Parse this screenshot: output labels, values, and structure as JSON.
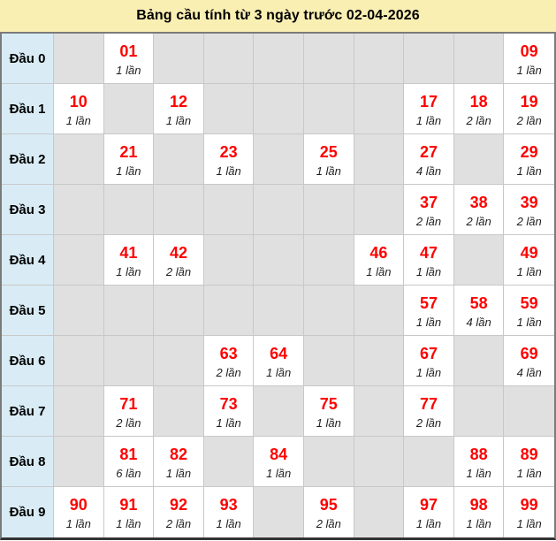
{
  "title": "Bảng cầu tính từ 3 ngày trước 02-04-2026",
  "colors": {
    "header_bg": "#FAEFB3",
    "label_bg": "#D9ECF6",
    "empty_bg": "#E0E0E0",
    "filled_bg": "#FFFFFF",
    "number_color": "#FE0000",
    "times_color": "#1F1F1F",
    "grid_border": "#C8C8C8",
    "outer_border": "#7B7B7B",
    "bottom_border": "#333333",
    "title_color": "#000000"
  },
  "rows": [
    {
      "label": "Đầu 0",
      "cells": [
        null,
        {
          "num": "01",
          "times": "1 lần"
        },
        null,
        null,
        null,
        null,
        null,
        null,
        null,
        {
          "num": "09",
          "times": "1 lần"
        }
      ]
    },
    {
      "label": "Đầu 1",
      "cells": [
        {
          "num": "10",
          "times": "1 lần"
        },
        null,
        {
          "num": "12",
          "times": "1 lần"
        },
        null,
        null,
        null,
        null,
        {
          "num": "17",
          "times": "1 lần"
        },
        {
          "num": "18",
          "times": "2 lần"
        },
        {
          "num": "19",
          "times": "2 lần"
        }
      ]
    },
    {
      "label": "Đầu 2",
      "cells": [
        null,
        {
          "num": "21",
          "times": "1 lần"
        },
        null,
        {
          "num": "23",
          "times": "1 lần"
        },
        null,
        {
          "num": "25",
          "times": "1 lần"
        },
        null,
        {
          "num": "27",
          "times": "4 lần"
        },
        null,
        {
          "num": "29",
          "times": "1 lần"
        }
      ]
    },
    {
      "label": "Đầu 3",
      "cells": [
        null,
        null,
        null,
        null,
        null,
        null,
        null,
        {
          "num": "37",
          "times": "2 lần"
        },
        {
          "num": "38",
          "times": "2 lần"
        },
        {
          "num": "39",
          "times": "2 lần"
        }
      ]
    },
    {
      "label": "Đầu 4",
      "cells": [
        null,
        {
          "num": "41",
          "times": "1 lần"
        },
        {
          "num": "42",
          "times": "2 lần"
        },
        null,
        null,
        null,
        {
          "num": "46",
          "times": "1 lần"
        },
        {
          "num": "47",
          "times": "1 lần"
        },
        null,
        {
          "num": "49",
          "times": "1 lần"
        }
      ]
    },
    {
      "label": "Đầu 5",
      "cells": [
        null,
        null,
        null,
        null,
        null,
        null,
        null,
        {
          "num": "57",
          "times": "1 lần"
        },
        {
          "num": "58",
          "times": "4 lần"
        },
        {
          "num": "59",
          "times": "1 lần"
        }
      ]
    },
    {
      "label": "Đầu 6",
      "cells": [
        null,
        null,
        null,
        {
          "num": "63",
          "times": "2 lần"
        },
        {
          "num": "64",
          "times": "1 lần"
        },
        null,
        null,
        {
          "num": "67",
          "times": "1 lần"
        },
        null,
        {
          "num": "69",
          "times": "4 lần"
        }
      ]
    },
    {
      "label": "Đầu 7",
      "cells": [
        null,
        {
          "num": "71",
          "times": "2 lần"
        },
        null,
        {
          "num": "73",
          "times": "1 lần"
        },
        null,
        {
          "num": "75",
          "times": "1 lần"
        },
        null,
        {
          "num": "77",
          "times": "2 lần"
        },
        null,
        null
      ]
    },
    {
      "label": "Đầu 8",
      "cells": [
        null,
        {
          "num": "81",
          "times": "6 lần"
        },
        {
          "num": "82",
          "times": "1 lần"
        },
        null,
        {
          "num": "84",
          "times": "1 lần"
        },
        null,
        null,
        null,
        {
          "num": "88",
          "times": "1 lần"
        },
        {
          "num": "89",
          "times": "1 lần"
        }
      ]
    },
    {
      "label": "Đầu 9",
      "cells": [
        {
          "num": "90",
          "times": "1 lần"
        },
        {
          "num": "91",
          "times": "1 lần"
        },
        {
          "num": "92",
          "times": "2 lần"
        },
        {
          "num": "93",
          "times": "1 lần"
        },
        null,
        {
          "num": "95",
          "times": "2 lần"
        },
        null,
        {
          "num": "97",
          "times": "1 lần"
        },
        {
          "num": "98",
          "times": "1 lần"
        },
        {
          "num": "99",
          "times": "1 lần"
        }
      ]
    }
  ]
}
